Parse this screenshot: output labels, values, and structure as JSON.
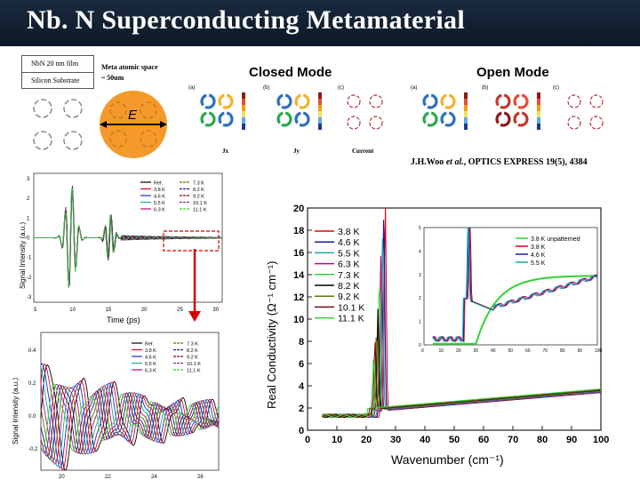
{
  "title": "Nb. N Superconducting Metamaterial",
  "layer_stack": {
    "film": "NbN 20 nm film",
    "substrate": "Silicon Substrate"
  },
  "meta_atomic": {
    "line1": "Meta atomic space",
    "line2": "~ 50um"
  },
  "efield_label": "E",
  "closed_mode": {
    "title": "Closed Mode",
    "labels": [
      "Jx",
      "Jy",
      "Current"
    ],
    "panel_tags": [
      "(a)",
      "(b)",
      "(c)"
    ]
  },
  "open_mode": {
    "title": "Open Mode",
    "panel_tags": [
      "(a)",
      "(b)",
      "(c)"
    ]
  },
  "citation": {
    "author": "J.H.Woo",
    "etal": "et al.",
    "rest": ", OPTICS EXPRESS 19(5), 4384"
  },
  "time_plot": {
    "xlabel": "Time (ps)",
    "ylabel": "Signal Intensity (a.u.)",
    "xticks": [
      "5",
      "10",
      "15",
      "20",
      "25",
      "30"
    ],
    "yticks": [
      "3",
      "2",
      "1",
      "0",
      "-1",
      "-2",
      "-3"
    ],
    "legend_left": [
      "Ref.",
      "3.8 K",
      "4.6 K",
      "5.5 K",
      "6.3 K"
    ],
    "legend_right": [
      "7.3 K",
      "8.2 K",
      "9.2 K",
      "10.1 K",
      "11.1 K"
    ]
  },
  "zoom_plot": {
    "ylabel": "Signal Intensity (a.u.)",
    "xticks": [
      "20",
      "22",
      "24",
      "26"
    ],
    "yticks": [
      "0.4",
      "0.2",
      "0.0",
      "-0.2"
    ],
    "legend_left": [
      "Ref.",
      "3.8 K",
      "4.6 K",
      "5.5 K",
      "6.3 K"
    ],
    "legend_right": [
      "7.3 K",
      "8.2 K",
      "9.2 K",
      "10.1 K",
      "11.1 K"
    ]
  },
  "conductivity_plot": {
    "xlabel": "Wavenumber (cm⁻¹)",
    "ylabel": "Real Conductivity (Ω⁻¹ cm⁻¹)",
    "xticks": [
      "0",
      "10",
      "20",
      "30",
      "40",
      "50",
      "60",
      "70",
      "80",
      "90",
      "100"
    ],
    "yticks": [
      "0",
      "2",
      "4",
      "6",
      "8",
      "10",
      "12",
      "14",
      "16",
      "18",
      "20"
    ],
    "legend": [
      "3.8 K",
      "4.6 K",
      "5.5 K",
      "6.3 K",
      "7.3 K",
      "8.2 K",
      "9.2 K",
      "10.1 K",
      "11.1 K"
    ],
    "inset_legend": [
      "3.8 K unpatterned",
      "3.8 K",
      "4.6 K",
      "5.5 K"
    ],
    "inset_xticks": [
      "0",
      "10",
      "20",
      "30",
      "40",
      "50",
      "60",
      "70",
      "80",
      "90",
      "100"
    ],
    "inset_yticks": [
      "0",
      "1",
      "2",
      "3",
      "4",
      "5"
    ]
  },
  "colors": {
    "title_bg": "#14243a",
    "series": [
      "#000000",
      "#e2001a",
      "#1a2fd0",
      "#1ba3a3",
      "#c8007d",
      "#6e6e00",
      "#1a1a99",
      "#7a0b0b",
      "#7c2d9a",
      "#35d135"
    ],
    "arrow": "#d40000"
  }
}
